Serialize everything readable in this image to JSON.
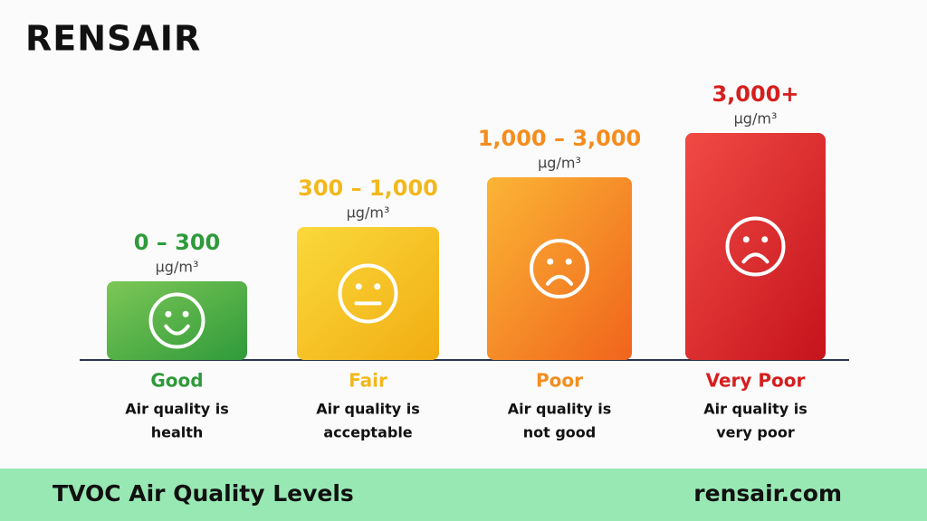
{
  "header": {
    "brand": "RENSAIR"
  },
  "levels": [
    {
      "range": "0 – 300",
      "unit": "µg/m³",
      "name": "Good",
      "description": [
        "Air quality is",
        "health"
      ]
    },
    {
      "range": "300 – 1,000",
      "unit": "µg/m³",
      "name": "Fair",
      "description": [
        "Air quality is",
        "acceptable"
      ]
    },
    {
      "range": "1,000 – 3,000",
      "unit": "µg/m³",
      "name": "Poor",
      "description": [
        "Air quality is",
        "not good"
      ]
    },
    {
      "range": "3,000+",
      "unit": "µg/m³",
      "name": "Very Poor",
      "description": [
        "Air quality is",
        "very poor"
      ]
    }
  ],
  "footer": {
    "title": "TVOC Air Quality Levels",
    "website": "rensair.com"
  }
}
